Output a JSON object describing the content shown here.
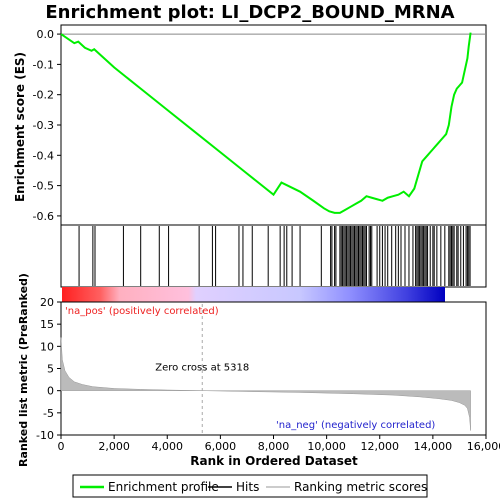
{
  "chart_data": {
    "type": "line",
    "title": "Enrichment plot: LI_DCP2_BOUND_MRNA",
    "top_panel": {
      "ylabel": "Enrichment score (ES)",
      "ylim": [
        -0.63,
        0.03
      ],
      "yticks": [
        "0.0",
        "-0.1",
        "-0.2",
        "-0.3",
        "-0.4",
        "-0.5",
        "-0.6"
      ],
      "ytick_values": [
        0.0,
        -0.1,
        -0.2,
        -0.3,
        -0.4,
        -0.5,
        -0.6
      ],
      "series": [
        {
          "name": "Enrichment profile",
          "color": "#00ee00",
          "x": [
            0,
            500,
            650,
            900,
            1150,
            1250,
            2000,
            3000,
            4000,
            5000,
            6000,
            7000,
            8000,
            8300,
            9000,
            9500,
            9900,
            10100,
            10300,
            10500,
            10700,
            10900,
            11100,
            11300,
            11500,
            11700,
            11900,
            12100,
            12300,
            12500,
            12700,
            12900,
            13100,
            13300,
            13400,
            13500,
            13600,
            13700,
            13800,
            13900,
            14000,
            14100,
            14200,
            14300,
            14400,
            14500,
            14600,
            14700,
            14800,
            14900,
            15000,
            15100,
            15200,
            15300,
            15350,
            15420
          ],
          "y": [
            0.0,
            -0.03,
            -0.025,
            -0.045,
            -0.055,
            -0.05,
            -0.11,
            -0.18,
            -0.25,
            -0.32,
            -0.39,
            -0.46,
            -0.53,
            -0.49,
            -0.52,
            -0.55,
            -0.575,
            -0.585,
            -0.59,
            -0.59,
            -0.58,
            -0.57,
            -0.56,
            -0.55,
            -0.535,
            -0.54,
            -0.545,
            -0.55,
            -0.54,
            -0.535,
            -0.53,
            -0.52,
            -0.535,
            -0.51,
            -0.48,
            -0.45,
            -0.42,
            -0.41,
            -0.4,
            -0.39,
            -0.38,
            -0.37,
            -0.36,
            -0.35,
            -0.34,
            -0.33,
            -0.3,
            -0.24,
            -0.2,
            -0.18,
            -0.17,
            -0.16,
            -0.12,
            -0.08,
            -0.04,
            0.005
          ]
        }
      ]
    },
    "hits": [
      680,
      1200,
      1280,
      2350,
      3000,
      3700,
      4050,
      5200,
      5700,
      5820,
      6700,
      6850,
      7200,
      7800,
      8250,
      8400,
      8500,
      8700,
      9000,
      9800,
      10150,
      10200,
      10300,
      10350,
      10500,
      10550,
      10600,
      10650,
      10700,
      10750,
      10800,
      10850,
      10900,
      10950,
      11000,
      11050,
      11100,
      11150,
      11200,
      11250,
      11300,
      11350,
      11400,
      11450,
      11500,
      11600,
      11650,
      11700,
      11900,
      12000,
      12100,
      12200,
      12300,
      12450,
      12600,
      12700,
      12800,
      12950,
      13100,
      13250,
      13350,
      13400,
      13450,
      13500,
      13550,
      13600,
      13650,
      13700,
      13750,
      13800,
      13900,
      14000,
      14050,
      14150,
      14300,
      14450,
      14600,
      14650,
      14700,
      14750,
      14800,
      14900,
      14950,
      15050,
      15150,
      15250,
      15300,
      15350,
      15400
    ],
    "bottom_panel": {
      "ylabel": "Ranked list metric (PreRanked)",
      "xlabel": "Rank in Ordered Dataset",
      "ylim": [
        -10,
        20
      ],
      "yticks": [
        "20",
        "15",
        "10",
        "5",
        "0",
        "-5",
        "-10"
      ],
      "ytick_values": [
        20,
        15,
        10,
        5,
        0,
        -5,
        -10
      ],
      "metric_x": [
        0,
        50,
        150,
        300,
        500,
        800,
        1200,
        2000,
        3000,
        4000,
        5318,
        7000,
        9000,
        11000,
        12500,
        13500,
        14200,
        14700,
        15000,
        15200,
        15300,
        15380,
        15420
      ],
      "metric_y": [
        12,
        7,
        4.5,
        3,
        2,
        1.4,
        0.9,
        0.5,
        0.3,
        0.15,
        0,
        -0.2,
        -0.4,
        -0.7,
        -1.0,
        -1.4,
        -1.8,
        -2.2,
        -2.7,
        -3.3,
        -4.0,
        -6.0,
        -9.0
      ],
      "zero_cross_label": "Zero cross at 5318",
      "zero_cross_x": 5318,
      "pos_label": "'na_pos' (positively correlated)",
      "neg_label": "'na_neg' (negatively correlated)"
    },
    "xlim": [
      0,
      16000
    ],
    "xticks": [
      "0",
      "2,000",
      "4,000",
      "6,000",
      "8,000",
      "10,000",
      "12,000",
      "14,000",
      "16,000"
    ],
    "xtick_values": [
      0,
      2000,
      4000,
      6000,
      8000,
      10000,
      12000,
      14000,
      16000
    ],
    "n_genes": 15420,
    "legend": {
      "placement": "bottom",
      "items": [
        {
          "label": "Enrichment profile",
          "color": "#00ee00"
        },
        {
          "label": "Hits",
          "color": "#000000"
        },
        {
          "label": "Ranking metric scores",
          "color": "#bbbbbb"
        }
      ]
    }
  }
}
